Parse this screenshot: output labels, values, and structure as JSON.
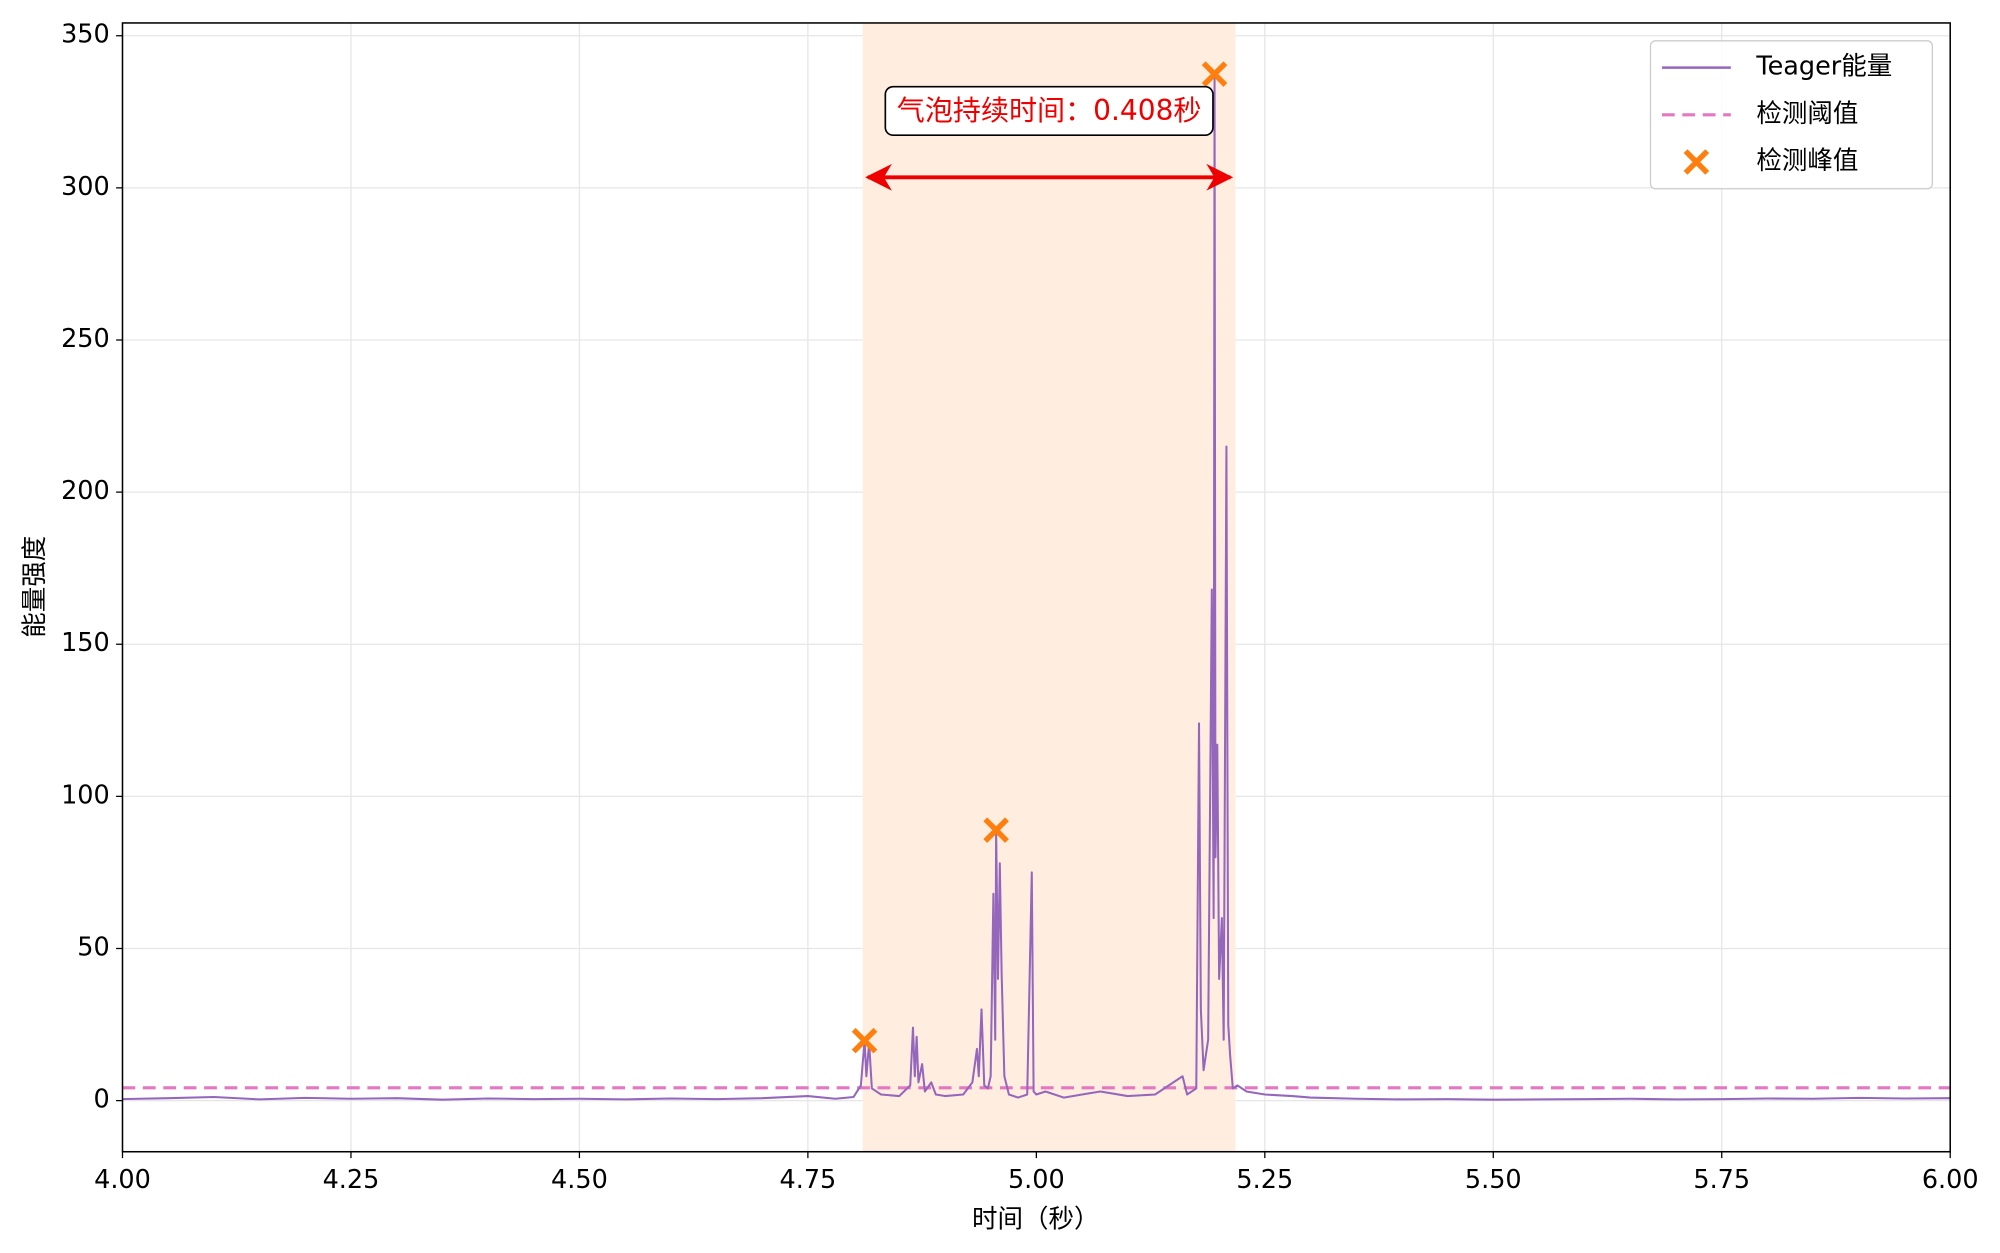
{
  "chart_data": {
    "type": "line",
    "xlabel": "时间（秒）",
    "ylabel": "能量强度",
    "xlim": [
      4.0,
      6.0
    ],
    "ylim": [
      -16.8,
      354.2
    ],
    "xticks": [
      {
        "value": 4.0,
        "label": "4.00"
      },
      {
        "value": 4.25,
        "label": "4.25"
      },
      {
        "value": 4.5,
        "label": "4.50"
      },
      {
        "value": 4.75,
        "label": "4.75"
      },
      {
        "value": 5.0,
        "label": "5.00"
      },
      {
        "value": 5.25,
        "label": "5.25"
      },
      {
        "value": 5.5,
        "label": "5.50"
      },
      {
        "value": 5.75,
        "label": "5.75"
      },
      {
        "value": 6.0,
        "label": "6.00"
      }
    ],
    "yticks": [
      0,
      50,
      100,
      150,
      200,
      250,
      300,
      350
    ],
    "grid": true,
    "legend": "upper right",
    "x": [
      4.0,
      4.05,
      4.1,
      4.15,
      4.2,
      4.25,
      4.3,
      4.35,
      4.4,
      4.45,
      4.5,
      4.55,
      4.6,
      4.65,
      4.7,
      4.75,
      4.78,
      4.8,
      4.808,
      4.812,
      4.814,
      4.817,
      4.82,
      4.83,
      4.85,
      4.862,
      4.865,
      4.867,
      4.869,
      4.871,
      4.875,
      4.878,
      4.885,
      4.89,
      4.9,
      4.92,
      4.93,
      4.935,
      4.937,
      4.94,
      4.943,
      4.947,
      4.95,
      4.953,
      4.955,
      4.956,
      4.958,
      4.96,
      4.962,
      4.965,
      4.97,
      4.98,
      4.99,
      4.995,
      4.997,
      5.0,
      5.01,
      5.03,
      5.05,
      5.07,
      5.1,
      5.13,
      5.16,
      5.165,
      5.175,
      5.178,
      5.18,
      5.183,
      5.188,
      5.192,
      5.194,
      5.195,
      5.196,
      5.198,
      5.2,
      5.203,
      5.205,
      5.208,
      5.21,
      5.212,
      5.215,
      5.22,
      5.23,
      5.25,
      5.28,
      5.3,
      5.35,
      5.4,
      5.45,
      5.5,
      5.55,
      5.6,
      5.65,
      5.7,
      5.75,
      5.8,
      5.85,
      5.9,
      5.95,
      6.0
    ],
    "series": [
      {
        "name": "Teager能量",
        "color": "#9467bd",
        "values": [
          0.5,
          0.8,
          1.2,
          0.4,
          0.9,
          0.6,
          0.8,
          0.3,
          0.7,
          0.5,
          0.6,
          0.4,
          0.7,
          0.5,
          0.8,
          1.5,
          0.6,
          1.2,
          5,
          19.7,
          8,
          19,
          4,
          2,
          1.5,
          5,
          24,
          8,
          21,
          6,
          12,
          3,
          6,
          2,
          1.5,
          2,
          6,
          17,
          8,
          30,
          5,
          4,
          8,
          68,
          20,
          88.9,
          40,
          78,
          42,
          8,
          2,
          1,
          2,
          75,
          3,
          2,
          3,
          1,
          2,
          3,
          1.5,
          2,
          8,
          2,
          4,
          124,
          30,
          10,
          20,
          168,
          60,
          337.4,
          80,
          117,
          40,
          60,
          20,
          215,
          25,
          15,
          4,
          5,
          3,
          2,
          1.5,
          1,
          0.6,
          0.4,
          0.5,
          0.3,
          0.4,
          0.5,
          0.6,
          0.4,
          0.5,
          0.7,
          0.6,
          0.9,
          0.7,
          0.8
        ]
      }
    ],
    "threshold": {
      "name": "检测阈值",
      "value": 4.2,
      "color": "#e377c2"
    },
    "peaks": {
      "name": "检测峰值",
      "color": "#ff7f0e",
      "x": [
        4.812,
        4.956,
        5.195
      ],
      "values": [
        19.7,
        88.9,
        337.4
      ]
    },
    "highlight": {
      "xlim": [
        4.81,
        5.218
      ],
      "color": "#ffeee0"
    },
    "annotation": "气泡持续时间：0.408秒"
  }
}
